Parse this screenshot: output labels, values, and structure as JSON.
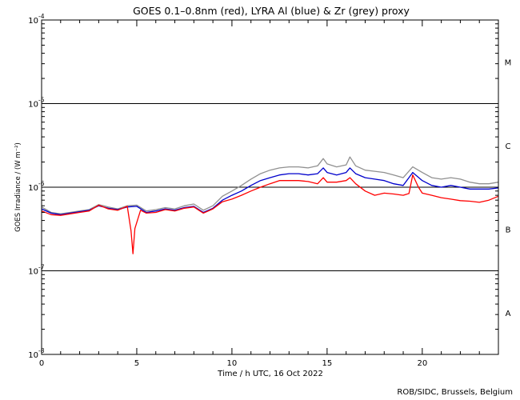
{
  "chart_data": {
    "type": "line",
    "title": "GOES 0.1–0.8nm (red), LYRA Al (blue) & Zr (grey) proxy",
    "xlabel": "Time / h UTC, 16 Oct 2022",
    "ylabel": "GOES Irradiance / (W m⁻²)",
    "credit": "ROB/SIDC, Brussels, Belgium",
    "xlim": [
      0,
      24
    ],
    "ylim": [
      1e-08,
      0.0001
    ],
    "yscale": "log",
    "x_ticks": [
      "0",
      "5",
      "10",
      "15",
      "20"
    ],
    "y_tick_mantissa": "10",
    "y_tick_exponents": [
      "-8",
      "-7",
      "-6",
      "-5",
      "-4"
    ],
    "flare_class_labels": [
      "A",
      "B",
      "C",
      "M"
    ],
    "grid_levels": [
      1e-07,
      1e-06,
      1e-05
    ],
    "series": [
      {
        "name": "GOES 0.1–0.8nm",
        "color": "#ff0000",
        "x": [
          0,
          0.5,
          1,
          1.5,
          2,
          2.5,
          3,
          3.5,
          4,
          4.5,
          4.7,
          4.8,
          4.9,
          5.2,
          5.5,
          6,
          6.5,
          7,
          7.5,
          8,
          8.5,
          9,
          9.5,
          10,
          10.5,
          11,
          11.5,
          12,
          12.5,
          13,
          13.5,
          14,
          14.5,
          14.8,
          15,
          15.5,
          16,
          16.2,
          16.5,
          17,
          17.5,
          18,
          18.5,
          19,
          19.3,
          19.5,
          19.8,
          20,
          20.5,
          21,
          21.5,
          22,
          22.5,
          23,
          23.5,
          24
        ],
        "values": [
          5.2e-07,
          4.7e-07,
          4.6e-07,
          4.8e-07,
          5e-07,
          5.2e-07,
          6.1e-07,
          5.5e-07,
          5.3e-07,
          5.9e-07,
          3e-07,
          1.6e-07,
          3.2e-07,
          5.3e-07,
          4.9e-07,
          5e-07,
          5.4e-07,
          5.2e-07,
          5.6e-07,
          5.8e-07,
          4.9e-07,
          5.5e-07,
          6.7e-07,
          7.2e-07,
          8e-07,
          9e-07,
          1e-06,
          1.1e-06,
          1.2e-06,
          1.2e-06,
          1.2e-06,
          1.17e-06,
          1.1e-06,
          1.3e-06,
          1.15e-06,
          1.15e-06,
          1.2e-06,
          1.3e-06,
          1.1e-06,
          9e-07,
          8e-07,
          8.5e-07,
          8.3e-07,
          8e-07,
          8.4e-07,
          1.4e-06,
          1e-06,
          8.5e-07,
          8e-07,
          7.5e-07,
          7.2e-07,
          6.9e-07,
          6.8e-07,
          6.6e-07,
          7e-07,
          7.8e-07
        ]
      },
      {
        "name": "LYRA Al proxy",
        "color": "#0000cc",
        "x": [
          0,
          0.5,
          1,
          1.5,
          2,
          2.5,
          3,
          3.5,
          4,
          4.5,
          5,
          5.5,
          6,
          6.5,
          7,
          7.5,
          8,
          8.5,
          9,
          9.5,
          10,
          10.5,
          11,
          11.5,
          12,
          12.5,
          13,
          13.5,
          14,
          14.5,
          14.8,
          15,
          15.5,
          16,
          16.2,
          16.5,
          17,
          17.5,
          18,
          18.5,
          19,
          19.5,
          20,
          20.5,
          21,
          21.5,
          22,
          22.5,
          23,
          23.5,
          24
        ],
        "values": [
          5.5e-07,
          4.9e-07,
          4.7e-07,
          4.9e-07,
          5.1e-07,
          5.3e-07,
          6e-07,
          5.6e-07,
          5.4e-07,
          5.8e-07,
          5.9e-07,
          5e-07,
          5.2e-07,
          5.5e-07,
          5.3e-07,
          5.7e-07,
          5.9e-07,
          5e-07,
          5.6e-07,
          7e-07,
          8e-07,
          9e-07,
          1.05e-06,
          1.2e-06,
          1.3e-06,
          1.4e-06,
          1.45e-06,
          1.45e-06,
          1.4e-06,
          1.45e-06,
          1.7e-06,
          1.5e-06,
          1.4e-06,
          1.5e-06,
          1.7e-06,
          1.45e-06,
          1.3e-06,
          1.25e-06,
          1.2e-06,
          1.1e-06,
          1.05e-06,
          1.5e-06,
          1.2e-06,
          1.05e-06,
          1e-06,
          1.05e-06,
          1e-06,
          9.5e-07,
          9.5e-07,
          9.5e-07,
          9.8e-07
        ]
      },
      {
        "name": "LYRA Zr proxy",
        "color": "#909090",
        "x": [
          0,
          0.5,
          1,
          1.5,
          2,
          2.5,
          3,
          3.5,
          4,
          4.5,
          5,
          5.5,
          6,
          6.5,
          7,
          7.5,
          8,
          8.5,
          9,
          9.5,
          10,
          10.5,
          11,
          11.5,
          12,
          12.5,
          13,
          13.5,
          14,
          14.5,
          14.8,
          15,
          15.5,
          16,
          16.2,
          16.5,
          17,
          17.5,
          18,
          18.5,
          19,
          19.5,
          20,
          20.5,
          21,
          21.5,
          22,
          22.5,
          23,
          23.5,
          24
        ],
        "values": [
          5.8e-07,
          5e-07,
          4.8e-07,
          5e-07,
          5.2e-07,
          5.4e-07,
          6.2e-07,
          5.8e-07,
          5.5e-07,
          6e-07,
          6.1e-07,
          5.2e-07,
          5.4e-07,
          5.7e-07,
          5.5e-07,
          6e-07,
          6.3e-07,
          5.3e-07,
          6e-07,
          7.8e-07,
          9e-07,
          1.05e-06,
          1.25e-06,
          1.45e-06,
          1.6e-06,
          1.7e-06,
          1.75e-06,
          1.75e-06,
          1.7e-06,
          1.8e-06,
          2.2e-06,
          1.9e-06,
          1.75e-06,
          1.85e-06,
          2.3e-06,
          1.8e-06,
          1.6e-06,
          1.55e-06,
          1.5e-06,
          1.4e-06,
          1.3e-06,
          1.75e-06,
          1.5e-06,
          1.3e-06,
          1.25e-06,
          1.3e-06,
          1.25e-06,
          1.15e-06,
          1.1e-06,
          1.1e-06,
          1.15e-06
        ]
      }
    ]
  }
}
